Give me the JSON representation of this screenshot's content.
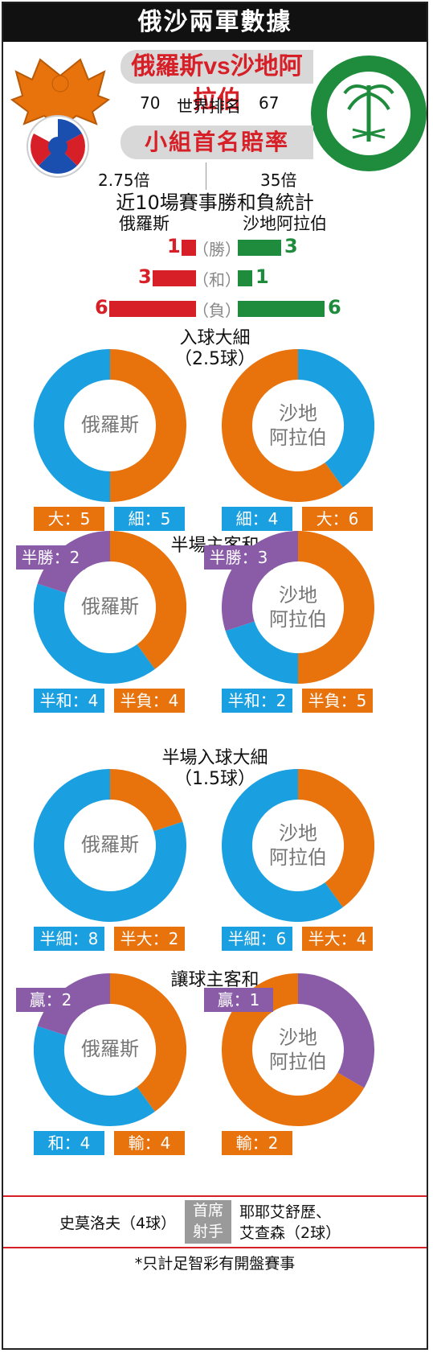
{
  "header": {
    "title": "俄沙兩軍數據"
  },
  "match": {
    "team_a": "俄羅斯",
    "vs": "vs",
    "team_b": "沙地阿拉伯"
  },
  "ranking": {
    "label": "世界排名",
    "team_a": "70",
    "team_b": "67"
  },
  "odds": {
    "title": "小組首名賠率",
    "team_a": "2.75倍",
    "team_b": "35倍"
  },
  "recent": {
    "title": "近10場賽事勝和負統計",
    "team_a_label": "俄羅斯",
    "team_b_label": "沙地阿拉伯",
    "rows": [
      {
        "label": "勝",
        "a": "1",
        "b": "3"
      },
      {
        "label": "和",
        "a": "3",
        "b": "1"
      },
      {
        "label": "負",
        "a": "6",
        "b": "6"
      }
    ]
  },
  "colors": {
    "red": "#d61f26",
    "green": "#1e8c3c",
    "orange": "#e8720c",
    "blue": "#1aa0e0",
    "purple": "#8a5ca8"
  },
  "sections": [
    {
      "title": "入球大細",
      "subtitle": "（2.5球）"
    },
    {
      "title": "半場主客和",
      "subtitle": ""
    },
    {
      "title": "半場入球大細",
      "subtitle": "（1.5球）"
    },
    {
      "title": "讓球主客和",
      "subtitle": ""
    }
  ],
  "donut_center": {
    "team_a": "俄羅斯",
    "team_b_line1": "沙地",
    "team_b_line2": "阿拉伯"
  },
  "chart_data": [
    {
      "type": "pie",
      "title": "入球大細",
      "team": "俄羅斯",
      "labels": [
        "大",
        "細"
      ],
      "values": [
        5,
        5
      ],
      "tags": [
        "大：5",
        "細：5"
      ]
    },
    {
      "type": "pie",
      "title": "入球大細",
      "team": "沙地阿拉伯",
      "labels": [
        "細",
        "大"
      ],
      "values": [
        4,
        6
      ],
      "tags": [
        "細：4",
        "大：6"
      ]
    },
    {
      "type": "pie",
      "title": "半場主客和",
      "team": "俄羅斯",
      "labels": [
        "半負",
        "半和",
        "半勝"
      ],
      "values": [
        4,
        4,
        2
      ],
      "tags": [
        "半和：4",
        "半負：4",
        "半勝：2"
      ]
    },
    {
      "type": "pie",
      "title": "半場主客和",
      "team": "沙地阿拉伯",
      "labels": [
        "半負",
        "半和",
        "半勝"
      ],
      "values": [
        5,
        2,
        3
      ],
      "tags": [
        "半和：2",
        "半負：5",
        "半勝：3"
      ]
    },
    {
      "type": "pie",
      "title": "半場入球大細",
      "team": "俄羅斯",
      "labels": [
        "半大",
        "半細"
      ],
      "values": [
        2,
        8
      ],
      "tags": [
        "半細：8",
        "半大：2"
      ]
    },
    {
      "type": "pie",
      "title": "半場入球大細",
      "team": "沙地阿拉伯",
      "labels": [
        "半大",
        "半細"
      ],
      "values": [
        4,
        6
      ],
      "tags": [
        "半細：6",
        "半大：4"
      ]
    },
    {
      "type": "pie",
      "title": "讓球主客和",
      "team": "俄羅斯",
      "labels": [
        "輸",
        "和",
        "贏"
      ],
      "values": [
        4,
        4,
        2
      ],
      "tags": [
        "和：4",
        "輸：4",
        "贏：2"
      ]
    },
    {
      "type": "pie",
      "title": "讓球主客和",
      "team": "沙地阿拉伯",
      "labels": [
        "贏",
        "輸"
      ],
      "values": [
        1,
        2
      ],
      "tags": [
        "輸：2",
        "贏：1"
      ]
    }
  ],
  "scorers": {
    "label_line1": "首席",
    "label_line2": "射手",
    "team_a": "史莫洛夫（4球）",
    "team_b_line1": "耶耶艾舒歷、",
    "team_b_line2": "艾查森（2球）"
  },
  "footnote": "*只計足智彩有開盤賽事"
}
